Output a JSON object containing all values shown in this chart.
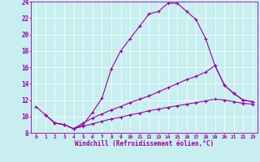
{
  "xlabel": "Windchill (Refroidissement éolien,°C)",
  "bg_color": "#c8eef0",
  "line_color": "#990099",
  "xlim": [
    -0.5,
    23.5
  ],
  "ylim": [
    8,
    24
  ],
  "xticks": [
    0,
    1,
    2,
    3,
    4,
    5,
    6,
    7,
    8,
    9,
    10,
    11,
    12,
    13,
    14,
    15,
    16,
    17,
    18,
    19,
    20,
    21,
    22,
    23
  ],
  "yticks": [
    8,
    10,
    12,
    14,
    16,
    18,
    20,
    22,
    24
  ],
  "line1_x": [
    0,
    1,
    2,
    3,
    4,
    5,
    6,
    7,
    8,
    9,
    10,
    11,
    12,
    13,
    14,
    15,
    16,
    17,
    18,
    19,
    20,
    21,
    22,
    23
  ],
  "line1_y": [
    11.2,
    10.2,
    9.2,
    9.0,
    8.5,
    9.0,
    10.5,
    12.2,
    15.8,
    18.0,
    19.5,
    21.0,
    22.5,
    22.8,
    23.8,
    23.8,
    22.8,
    21.8,
    19.5,
    16.2,
    13.8,
    12.8,
    12.0,
    11.8
  ],
  "line2_x": [
    1,
    2,
    3,
    4,
    5,
    6,
    7,
    8,
    9,
    10,
    11,
    12,
    13,
    14,
    15,
    16,
    17,
    18,
    19,
    20,
    21,
    22,
    23
  ],
  "line2_y": [
    10.2,
    9.2,
    9.0,
    8.5,
    9.2,
    9.8,
    10.3,
    10.8,
    11.2,
    11.7,
    12.1,
    12.5,
    13.0,
    13.5,
    14.0,
    14.5,
    14.9,
    15.4,
    16.2,
    13.8,
    12.8,
    12.0,
    11.8
  ],
  "line3_x": [
    1,
    2,
    3,
    4,
    5,
    6,
    7,
    8,
    9,
    10,
    11,
    12,
    13,
    14,
    15,
    16,
    17,
    18,
    19,
    20,
    21,
    22,
    23
  ],
  "line3_y": [
    10.2,
    9.2,
    9.0,
    8.5,
    8.8,
    9.1,
    9.4,
    9.7,
    9.9,
    10.2,
    10.4,
    10.7,
    10.9,
    11.1,
    11.3,
    11.5,
    11.7,
    11.9,
    12.1,
    12.0,
    11.8,
    11.6,
    11.5
  ]
}
